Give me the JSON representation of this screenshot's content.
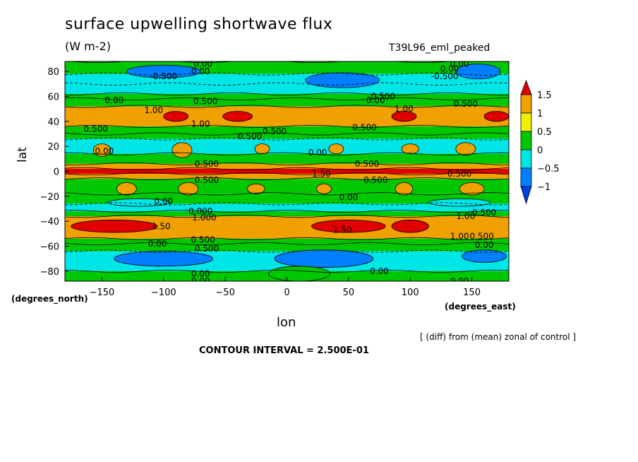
{
  "header": {
    "title": "surface upwelling shortwave flux",
    "units": "(W m-2)",
    "run_name": "T39L96_eml_peaked"
  },
  "axes": {
    "ylabel": "lat",
    "xlabel": "lon",
    "yunit": "(degrees_north)",
    "xunit": "(degrees_east)"
  },
  "footer": {
    "diff_note": "[ (diff) from (mean) zonal of control ]",
    "contour_interval": "CONTOUR INTERVAL = 2.500E-01"
  },
  "chart_data": {
    "type": "heatmap",
    "title": "surface upwelling shortwave flux",
    "subtitle": "(W m-2)",
    "xlabel": "lon",
    "ylabel": "lat",
    "xlim": [
      -180,
      180
    ],
    "ylim": [
      -88,
      88
    ],
    "xticks": [
      -150,
      -100,
      -50,
      0,
      50,
      100,
      150
    ],
    "yticks": [
      80,
      60,
      40,
      20,
      0,
      -20,
      -40,
      -60,
      -80
    ],
    "colorbar": {
      "levels": [
        1.5,
        1,
        0.5,
        0,
        -0.5,
        -1
      ],
      "labels": [
        "1.5",
        "1",
        "0.5",
        "0",
        "-0.5",
        "-1"
      ],
      "colors": [
        "#e00000",
        "#f0a000",
        "#f0f000",
        "#00c800",
        "#00e6e6",
        "#0080ff",
        "#0040e0"
      ]
    },
    "zonal_bands": [
      {
        "lat_from": 88,
        "lat_to": 78,
        "value": 0.0
      },
      {
        "lat_from": 78,
        "lat_to": 70,
        "value": -0.5
      },
      {
        "lat_from": 70,
        "lat_to": 62,
        "value": -0.25
      },
      {
        "lat_from": 62,
        "lat_to": 58,
        "value": 0.25
      },
      {
        "lat_from": 58,
        "lat_to": 52,
        "value": 0.25
      },
      {
        "lat_from": 52,
        "lat_to": 36,
        "value": 0.75
      },
      {
        "lat_from": 36,
        "lat_to": 30,
        "value": 0.25
      },
      {
        "lat_from": 30,
        "lat_to": 26,
        "value": 0.0
      },
      {
        "lat_from": 26,
        "lat_to": 14,
        "value": -0.25
      },
      {
        "lat_from": 14,
        "lat_to": 6,
        "value": 0.0
      },
      {
        "lat_from": 6,
        "lat_to": 2,
        "value": 0.75
      },
      {
        "lat_from": 2,
        "lat_to": -2,
        "value": 1.5
      },
      {
        "lat_from": -2,
        "lat_to": -6,
        "value": 0.75
      },
      {
        "lat_from": -6,
        "lat_to": -18,
        "value": 0.25
      },
      {
        "lat_from": -18,
        "lat_to": -26,
        "value": 0.0
      },
      {
        "lat_from": -26,
        "lat_to": -32,
        "value": -0.25
      },
      {
        "lat_from": -32,
        "lat_to": -36,
        "value": 0.25
      },
      {
        "lat_from": -36,
        "lat_to": -54,
        "value": 0.75
      },
      {
        "lat_from": -54,
        "lat_to": -58,
        "value": 0.25
      },
      {
        "lat_from": -58,
        "lat_to": -64,
        "value": 0.0
      },
      {
        "lat_from": -64,
        "lat_to": -80,
        "value": -0.25
      },
      {
        "lat_from": -80,
        "lat_to": -88,
        "value": 0.0
      }
    ],
    "blobs": [
      {
        "lon": -100,
        "lat": 80,
        "dlon": 30,
        "dlat": 5,
        "value": -0.75
      },
      {
        "lon": 45,
        "lat": 73,
        "dlon": 30,
        "dlat": 6,
        "value": -0.75
      },
      {
        "lon": 155,
        "lat": 80,
        "dlon": 18,
        "dlat": 6,
        "value": -0.75
      },
      {
        "lon": -90,
        "lat": 44,
        "dlon": 10,
        "dlat": 4,
        "value": 1.5
      },
      {
        "lon": -40,
        "lat": 44,
        "dlon": 12,
        "dlat": 4,
        "value": 1.5
      },
      {
        "lon": 95,
        "lat": 44,
        "dlon": 10,
        "dlat": 4,
        "value": 1.5
      },
      {
        "lon": 170,
        "lat": 44,
        "dlon": 10,
        "dlat": 4,
        "value": 1.5
      },
      {
        "lon": -150,
        "lat": 17,
        "dlon": 7,
        "dlat": 5,
        "value": 0.75
      },
      {
        "lon": -85,
        "lat": 17,
        "dlon": 8,
        "dlat": 6,
        "value": 0.75
      },
      {
        "lon": -20,
        "lat": 18,
        "dlon": 6,
        "dlat": 4,
        "value": 0.75
      },
      {
        "lon": 40,
        "lat": 18,
        "dlon": 6,
        "dlat": 4,
        "value": 0.75
      },
      {
        "lon": 100,
        "lat": 18,
        "dlon": 7,
        "dlat": 4,
        "value": 0.75
      },
      {
        "lon": 145,
        "lat": 18,
        "dlon": 8,
        "dlat": 5,
        "value": 0.75
      },
      {
        "lon": -130,
        "lat": -14,
        "dlon": 8,
        "dlat": 5,
        "value": 0.75
      },
      {
        "lon": -80,
        "lat": -14,
        "dlon": 8,
        "dlat": 5,
        "value": 0.75
      },
      {
        "lon": -25,
        "lat": -14,
        "dlon": 7,
        "dlat": 4,
        "value": 0.75
      },
      {
        "lon": 30,
        "lat": -14,
        "dlon": 6,
        "dlat": 4,
        "value": 0.75
      },
      {
        "lon": 95,
        "lat": -14,
        "dlon": 7,
        "dlat": 5,
        "value": 0.75
      },
      {
        "lon": 150,
        "lat": -14,
        "dlon": 10,
        "dlat": 5,
        "value": 0.75
      },
      {
        "lon": -140,
        "lat": -44,
        "dlon": 35,
        "dlat": 5,
        "value": 1.5
      },
      {
        "lon": 50,
        "lat": -44,
        "dlon": 30,
        "dlat": 5,
        "value": 1.5
      },
      {
        "lon": 100,
        "lat": -44,
        "dlon": 15,
        "dlat": 5,
        "value": 1.5
      },
      {
        "lon": -100,
        "lat": -70,
        "dlon": 40,
        "dlat": 6,
        "value": -0.75
      },
      {
        "lon": 30,
        "lat": -70,
        "dlon": 40,
        "dlat": 7,
        "value": -0.75
      },
      {
        "lon": 160,
        "lat": -68,
        "dlon": 18,
        "dlat": 5,
        "value": -0.75
      },
      {
        "lon": 10,
        "lat": -82,
        "dlon": 25,
        "dlat": 6,
        "value": 0.25
      },
      {
        "lon": -120,
        "lat": -25,
        "dlon": 25,
        "dlat": 3,
        "value": -0.25
      },
      {
        "lon": 140,
        "lat": -25,
        "dlon": 25,
        "dlat": 3,
        "value": -0.25
      }
    ],
    "contour_labels": [
      {
        "lon": -68,
        "lat": 86,
        "text": "0.00"
      },
      {
        "lon": -100,
        "lat": 76,
        "text": "-0.500"
      },
      {
        "lon": -70,
        "lat": 80,
        "text": "0.00"
      },
      {
        "lon": 140,
        "lat": 86,
        "text": "0.00"
      },
      {
        "lon": 132,
        "lat": 82,
        "text": "0.00"
      },
      {
        "lon": 128,
        "lat": 76,
        "text": "-0.500"
      },
      {
        "lon": -140,
        "lat": 57,
        "text": "0.00"
      },
      {
        "lon": 78,
        "lat": 60,
        "text": "0.500"
      },
      {
        "lon": 72,
        "lat": 57,
        "text": "0.00"
      },
      {
        "lon": -66,
        "lat": 56,
        "text": "0.500"
      },
      {
        "lon": 145,
        "lat": 54,
        "text": "0.500"
      },
      {
        "lon": -108,
        "lat": 49,
        "text": "1.00"
      },
      {
        "lon": 95,
        "lat": 50,
        "text": "1.00"
      },
      {
        "lon": -70,
        "lat": 38,
        "text": "1.00"
      },
      {
        "lon": -155,
        "lat": 34,
        "text": "0.500"
      },
      {
        "lon": -10,
        "lat": 32,
        "text": "0.500"
      },
      {
        "lon": -30,
        "lat": 28,
        "text": "0.500"
      },
      {
        "lon": 63,
        "lat": 35,
        "text": "0.500"
      },
      {
        "lon": -148,
        "lat": 16,
        "text": "0.00"
      },
      {
        "lon": 25,
        "lat": 15,
        "text": "0.00"
      },
      {
        "lon": -65,
        "lat": 6,
        "text": "0.500"
      },
      {
        "lon": 65,
        "lat": 6,
        "text": "0.500"
      },
      {
        "lon": 28,
        "lat": -2,
        "text": "1.50"
      },
      {
        "lon": -65,
        "lat": -7,
        "text": "0.500"
      },
      {
        "lon": 72,
        "lat": -7,
        "text": "0.500"
      },
      {
        "lon": 140,
        "lat": -2,
        "text": "0.500"
      },
      {
        "lon": 50,
        "lat": -21,
        "text": "0.00"
      },
      {
        "lon": -100,
        "lat": -24,
        "text": "0.00"
      },
      {
        "lon": -70,
        "lat": -32,
        "text": "0.000"
      },
      {
        "lon": -67,
        "lat": -37,
        "text": "1.000"
      },
      {
        "lon": 145,
        "lat": -36,
        "text": "1.00"
      },
      {
        "lon": 160,
        "lat": -33,
        "text": "0.500"
      },
      {
        "lon": -102,
        "lat": -44,
        "text": "1.50"
      },
      {
        "lon": 45,
        "lat": -47,
        "text": "1.50"
      },
      {
        "lon": -68,
        "lat": -55,
        "text": "0.500"
      },
      {
        "lon": -105,
        "lat": -58,
        "text": "0.00"
      },
      {
        "lon": -65,
        "lat": -62,
        "text": "0.500"
      },
      {
        "lon": 140,
        "lat": -52,
        "text": "1.00"
      },
      {
        "lon": 158,
        "lat": -52,
        "text": "0.500"
      },
      {
        "lon": 160,
        "lat": -59,
        "text": "0.00"
      },
      {
        "lon": 75,
        "lat": -80,
        "text": "0.00"
      },
      {
        "lon": -70,
        "lat": -82,
        "text": "0.00"
      },
      {
        "lon": -70,
        "lat": -88,
        "text": "0.00"
      },
      {
        "lon": 140,
        "lat": -88,
        "text": "0.00"
      }
    ]
  }
}
